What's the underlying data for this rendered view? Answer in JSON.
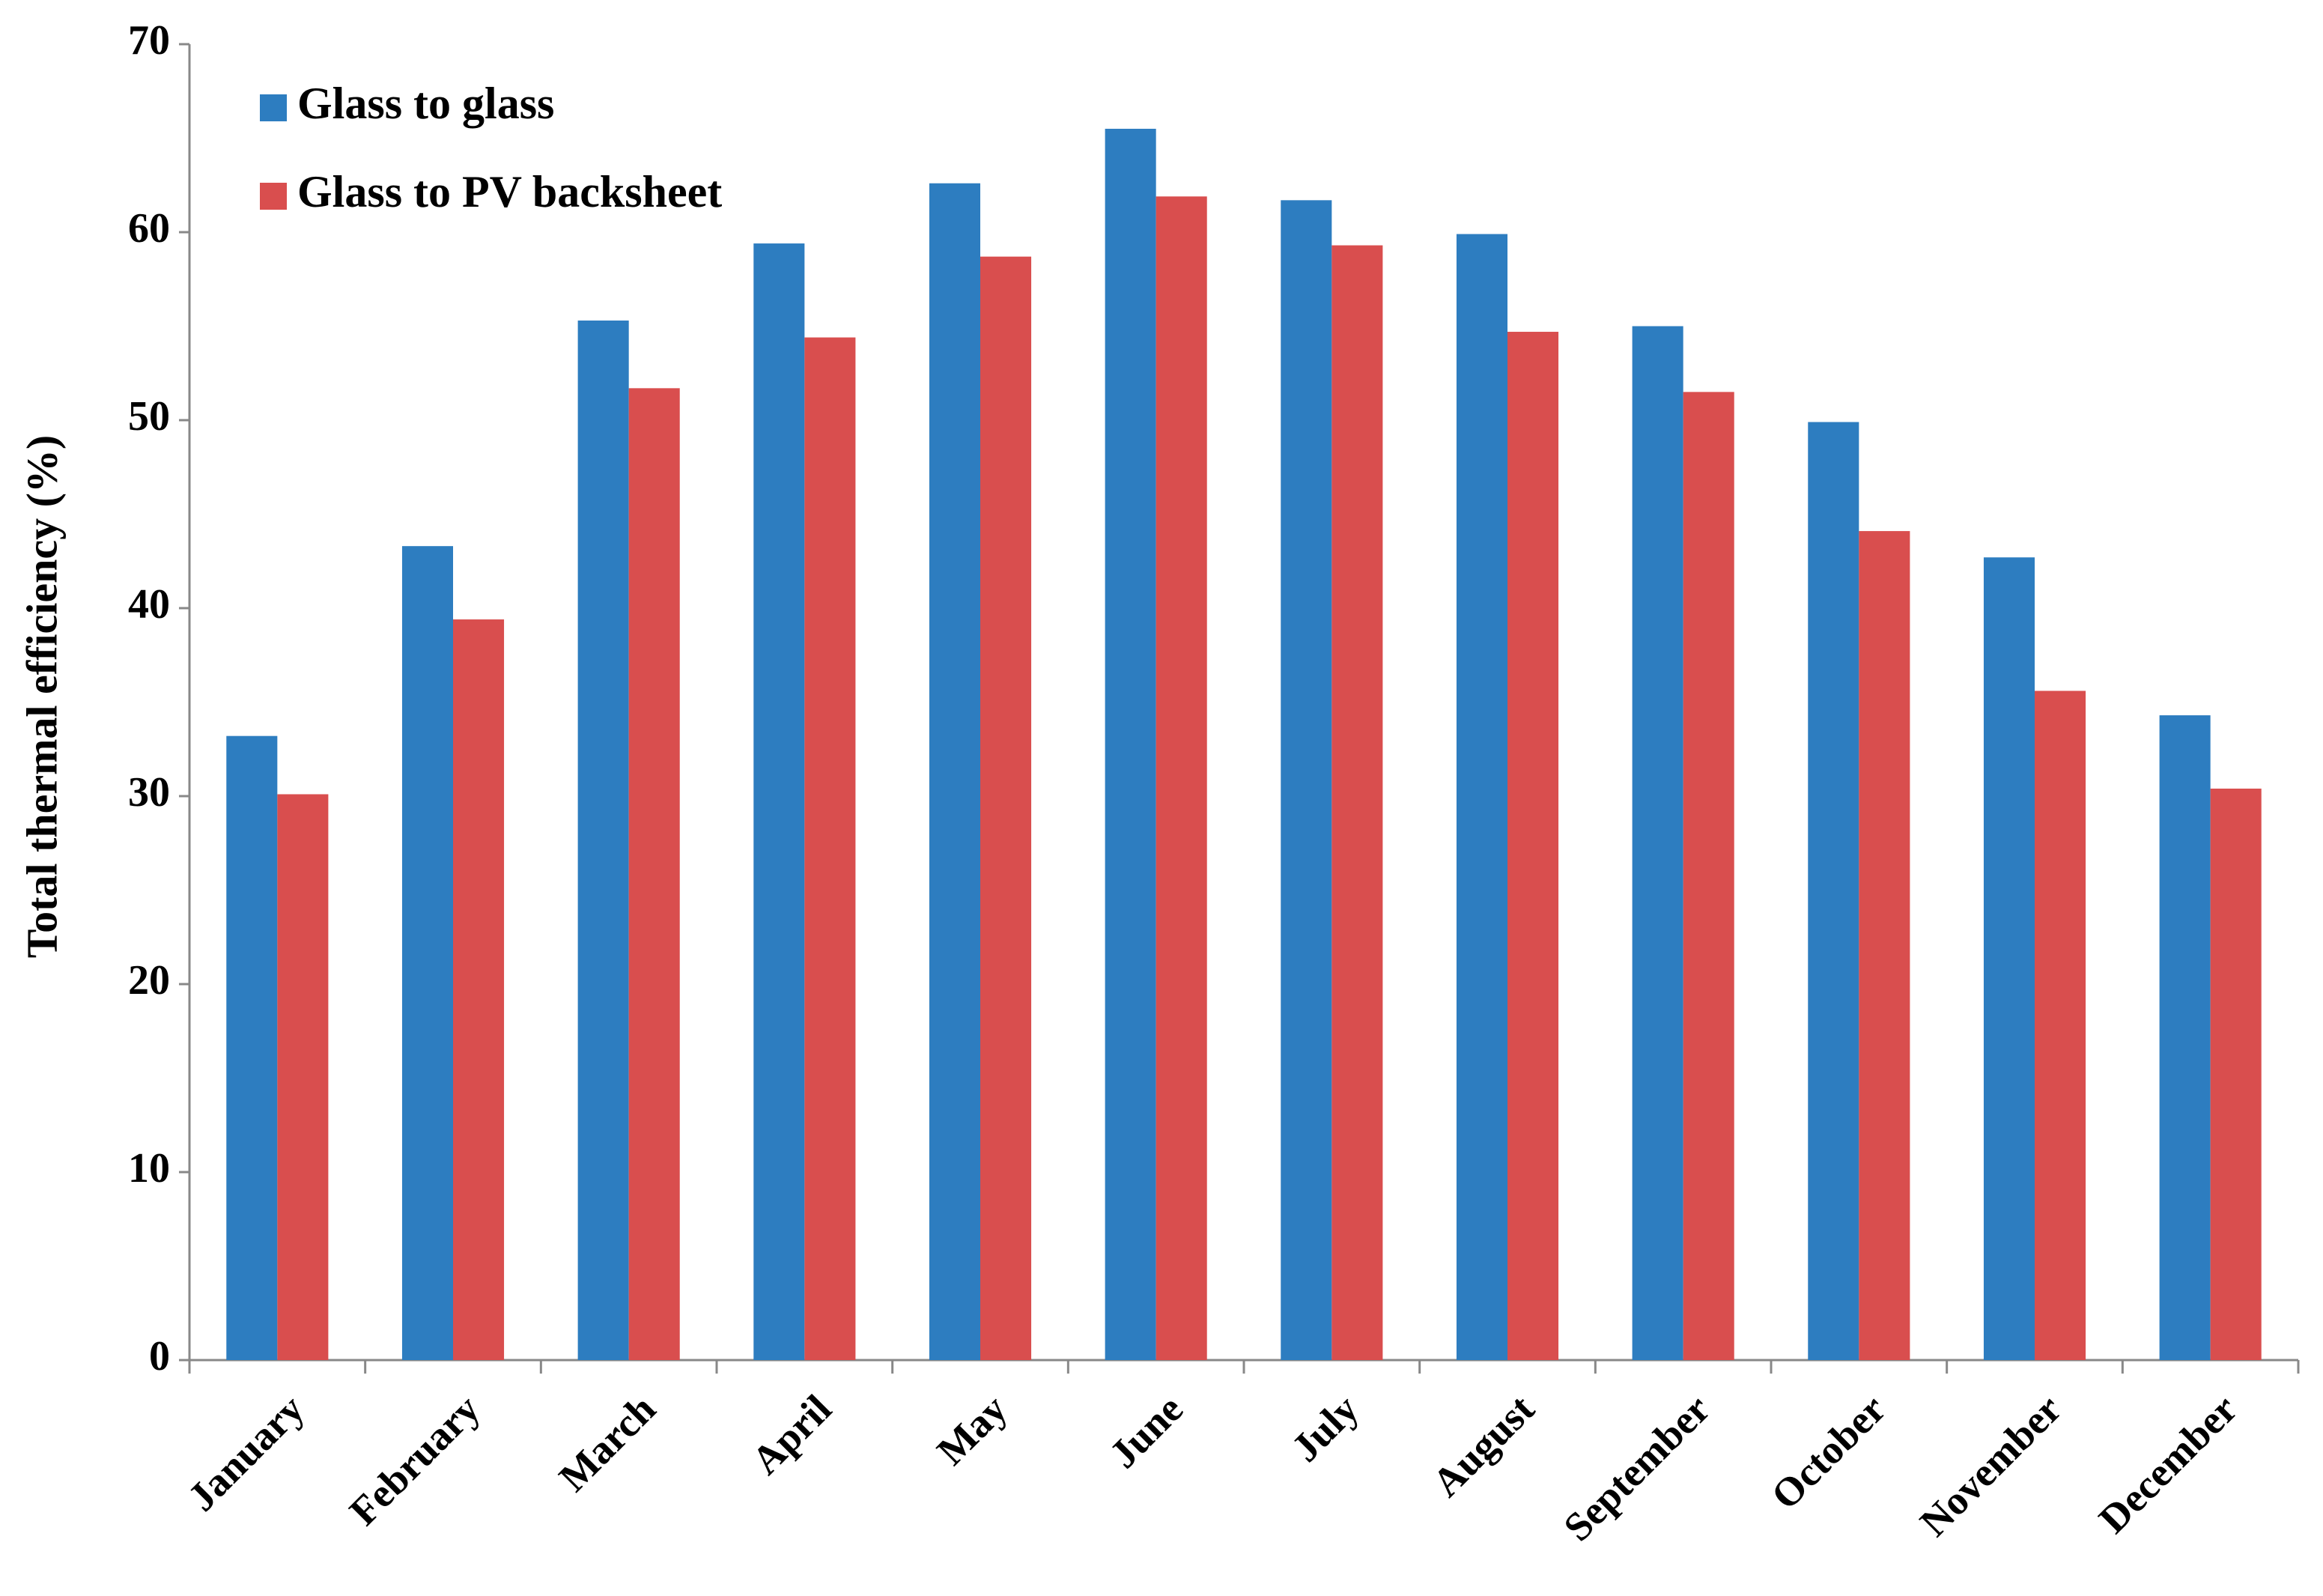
{
  "chart_data": {
    "type": "bar",
    "y_label": "Total thermal efficiency (%)",
    "categories": [
      "January",
      "February",
      "March",
      "April",
      "May",
      "June",
      "July",
      "August",
      "September",
      "October",
      "November",
      "December"
    ],
    "series": [
      {
        "name": "Glass to glass",
        "color": "#2d7dc0",
        "values": [
          33.2,
          43.3,
          55.3,
          59.4,
          62.6,
          65.5,
          61.7,
          59.9,
          55.0,
          49.9,
          42.7,
          34.3
        ]
      },
      {
        "name": "Glass to PV backsheet",
        "color": "#d94e4e",
        "values": [
          30.1,
          39.4,
          51.7,
          54.4,
          58.7,
          61.9,
          59.3,
          54.7,
          51.5,
          44.1,
          35.6,
          30.4
        ]
      }
    ],
    "ylim": [
      0,
      70
    ],
    "yticks": [
      0,
      10,
      20,
      30,
      40,
      50,
      60,
      70
    ],
    "grid": false,
    "legend": "upper left"
  }
}
